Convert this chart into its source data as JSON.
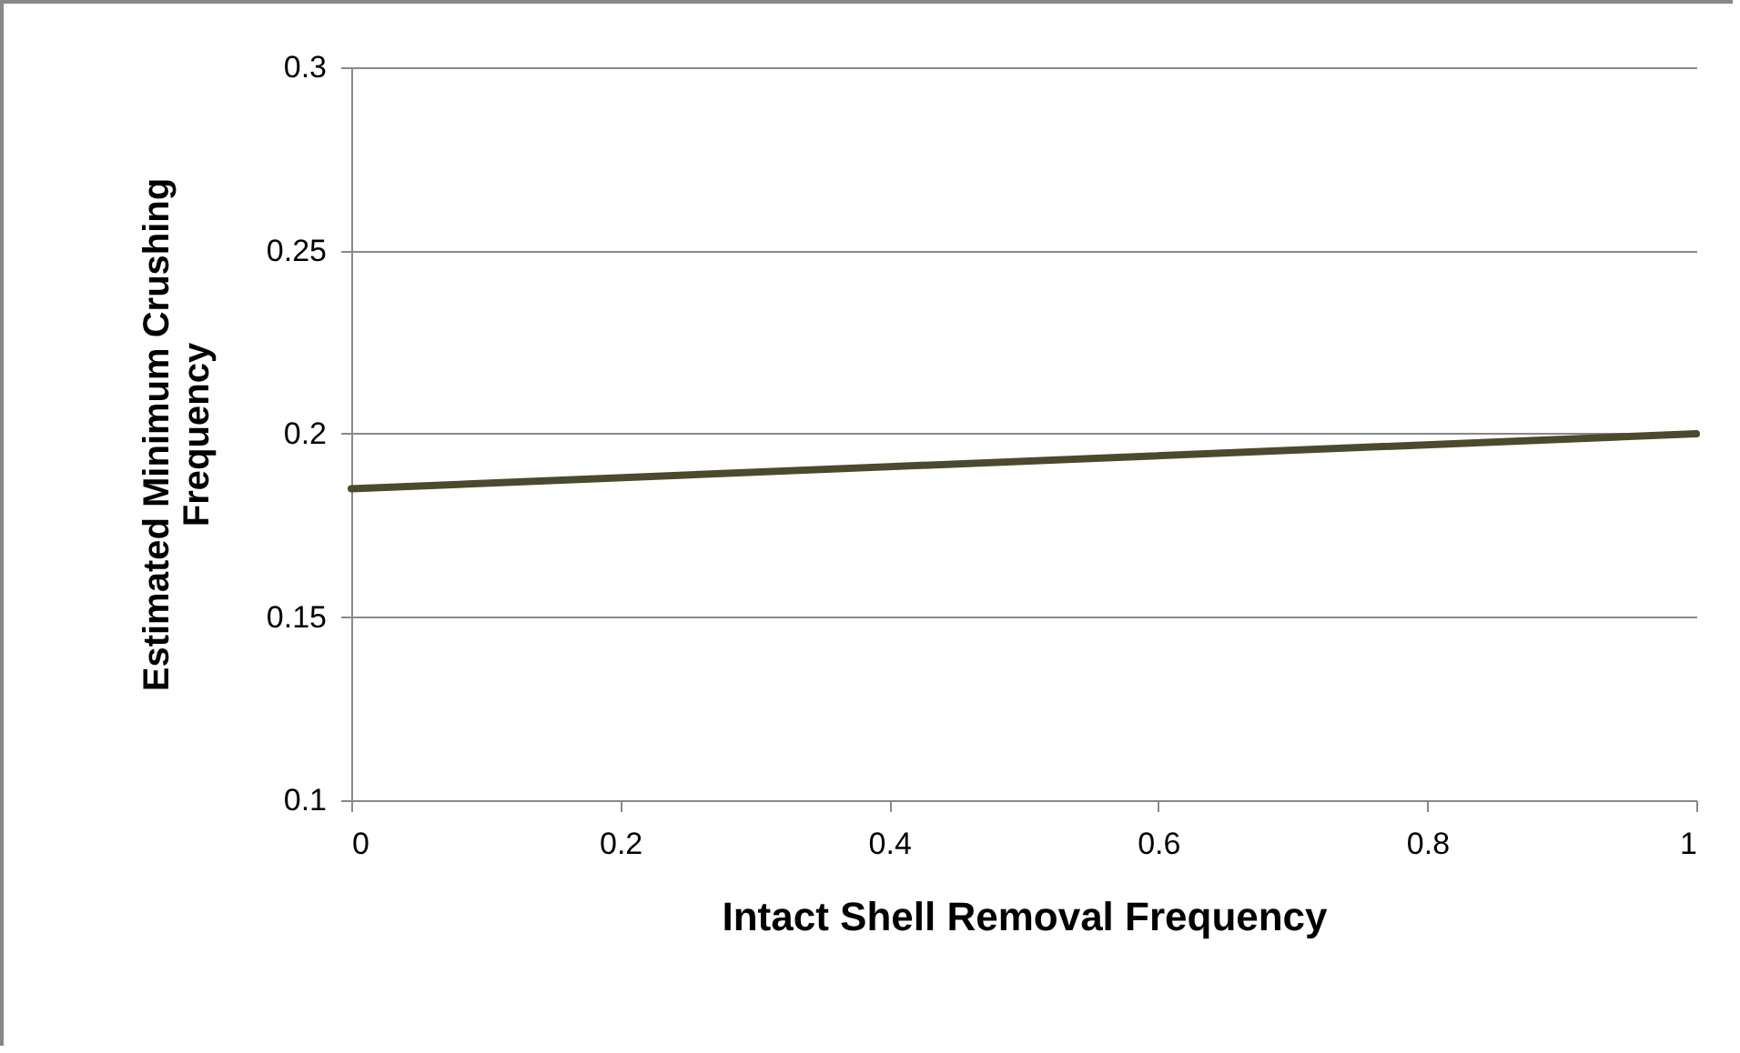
{
  "chart_data": {
    "type": "line",
    "xlabel": "Intact Shell Removal Frequency",
    "ylabel": "Estimated Minimum Crushing Frequency",
    "x": [
      0,
      1
    ],
    "series": [
      {
        "color": "#4b4a2e",
        "values": [
          0.185,
          0.2
        ]
      }
    ],
    "xlim": [
      0,
      1
    ],
    "xticks": [
      0,
      0.2,
      0.4,
      0.6,
      0.8,
      1
    ],
    "ylim": [
      0.1,
      0.3
    ],
    "yticks": [
      0.1,
      0.15,
      0.2,
      0.25,
      0.3
    ],
    "grid": "y",
    "legend": false,
    "marker": "none",
    "line_style": "solid"
  }
}
